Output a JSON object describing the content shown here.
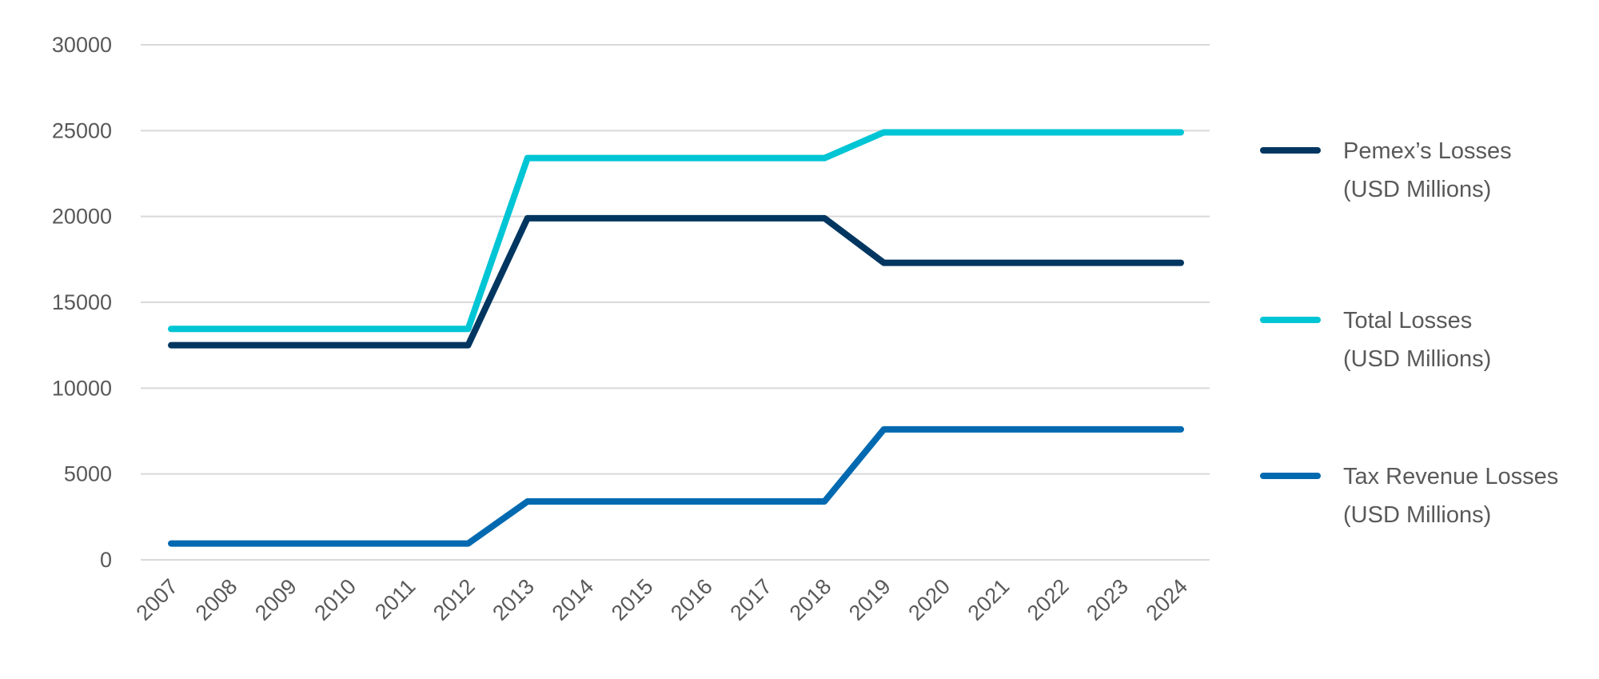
{
  "chart_data": {
    "type": "line",
    "title": "",
    "xlabel": "",
    "ylabel": "",
    "x": [
      "2007",
      "2008",
      "2009",
      "2010",
      "2011",
      "2012",
      "2013",
      "2014",
      "2015",
      "2016",
      "2017",
      "2018",
      "2019",
      "2020",
      "2021",
      "2022",
      "2023",
      "2024"
    ],
    "ylim": [
      0,
      30000
    ],
    "yticks": [
      0,
      5000,
      10000,
      15000,
      20000,
      25000,
      30000
    ],
    "grid": "horizontal",
    "legend_position": "right",
    "series": [
      {
        "name": "Pemex’s Losses",
        "name_line2": " (USD Millions)",
        "color": "#003660",
        "values": [
          12500,
          12500,
          12500,
          12500,
          12500,
          12500,
          19900,
          19900,
          19900,
          19900,
          19900,
          19900,
          17300,
          17300,
          17300,
          17300,
          17300,
          17300
        ]
      },
      {
        "name": "Total Losses",
        "name_line2": "(USD Millions)",
        "color": "#00C5D4",
        "values": [
          13450,
          13450,
          13450,
          13450,
          13450,
          13450,
          23400,
          23400,
          23400,
          23400,
          23400,
          23400,
          24900,
          24900,
          24900,
          24900,
          24900,
          24900
        ]
      },
      {
        "name": "Tax Revenue Losses",
        "name_line2": "(USD Millions)",
        "color": "#0069B0",
        "values": [
          950,
          950,
          950,
          950,
          950,
          950,
          3400,
          3400,
          3400,
          3400,
          3400,
          3400,
          7600,
          7600,
          7600,
          7600,
          7600,
          7600
        ]
      }
    ]
  }
}
